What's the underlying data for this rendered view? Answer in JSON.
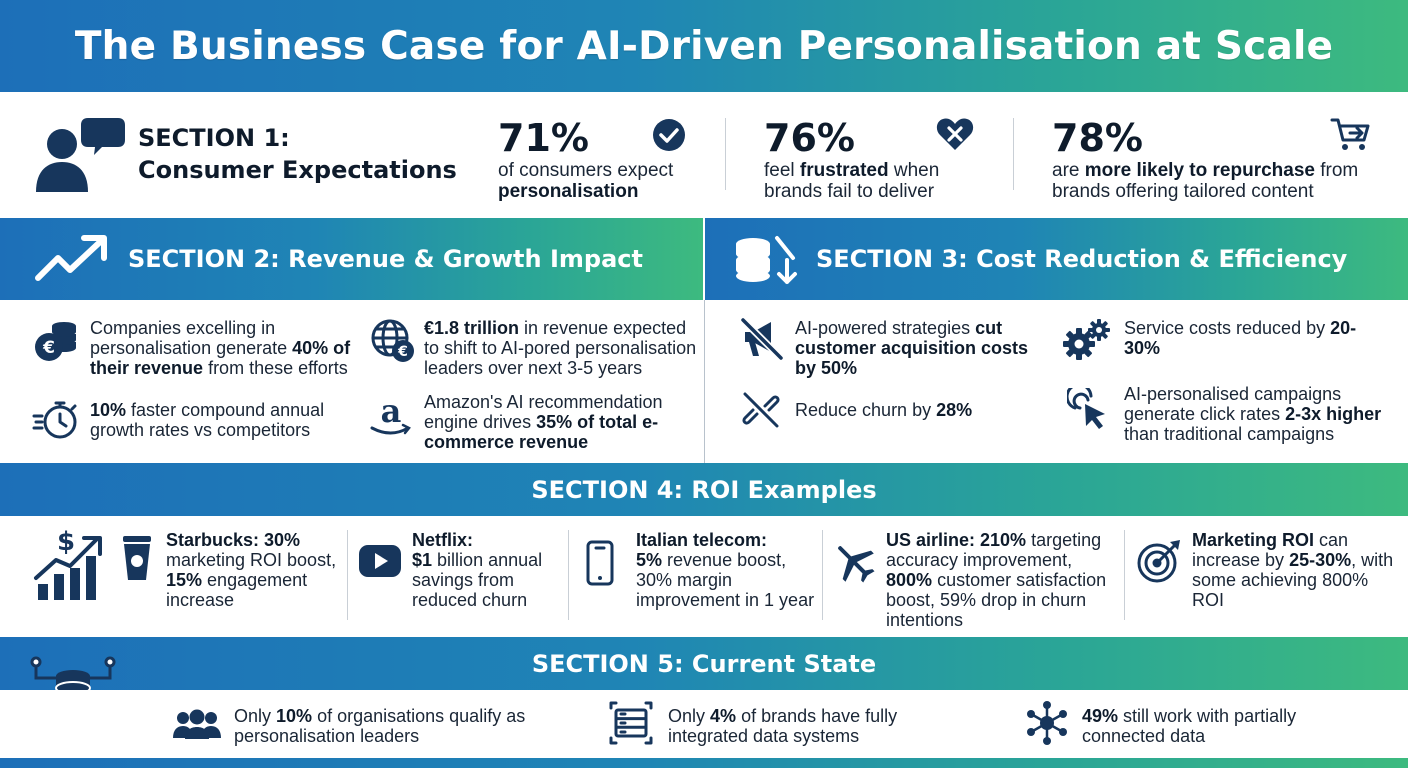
{
  "title": "The Business Case for AI-Driven Personalisation at Scale",
  "section1": {
    "title_line1": "SECTION 1:",
    "title_line2": "Consumer Expectations",
    "stats": [
      {
        "value": "71%",
        "pre": "of consumers expect",
        "bold": "personalisation",
        "post": ""
      },
      {
        "value": "76%",
        "pre": "feel",
        "bold": "frustrated",
        "post": "when brands fail to deliver"
      },
      {
        "value": "78%",
        "pre": "are",
        "bold": "more likely to repurchase",
        "post": "from brands offering tailored content"
      }
    ]
  },
  "section2": {
    "title": "SECTION 2: Revenue & Growth Impact",
    "items": [
      {
        "pre": "Companies excelling in personalisation generate",
        "bold": "40% of their revenue",
        "post": "from these efforts",
        "icon": "coins-euro-icon"
      },
      {
        "pre": "",
        "bold": "€1.8 trillion",
        "post": "in revenue expected to shift to AI-pored personalisation leaders over next 3-5 years",
        "icon": "globe-euro-icon"
      },
      {
        "pre": "",
        "bold": "10%",
        "post": "faster compound annual growth rates vs competitors",
        "icon": "stopwatch-icon"
      },
      {
        "pre": "Amazon's AI recommendation engine drives",
        "bold": "35% of total e-commerce revenue",
        "post": "",
        "icon": "amazon-logo-icon"
      }
    ]
  },
  "section3": {
    "title": "SECTION 3: Cost Reduction & Efficiency",
    "items": [
      {
        "pre": "AI-powered strategies",
        "bold": "cut customer acquisition costs by 50%",
        "post": "",
        "icon": "megaphone-off-icon"
      },
      {
        "pre": "Service costs reduced by",
        "bold": "20-30%",
        "post": "",
        "icon": "gears-icon"
      },
      {
        "pre": "Reduce churn by",
        "bold": "28%",
        "post": "",
        "icon": "broken-link-icon"
      },
      {
        "pre": "AI-personalised campaigns generate click rates",
        "bold": "2-3x higher",
        "post": "than traditional campaigns",
        "icon": "cursor-click-icon"
      }
    ]
  },
  "section4": {
    "title": "SECTION 4: ROI Examples",
    "items": [
      {
        "head": "Starbucks: 30%",
        "rest_pre": "marketing ROI boost,",
        "rest_bold": "15%",
        "rest_post": "engagement increase",
        "icon": "coffee-cup-icon"
      },
      {
        "head": "Netflix:",
        "rest_pre": "",
        "rest_bold": "$1",
        "rest_post": "billion annual savings from reduced churn",
        "icon": "play-button-icon"
      },
      {
        "head": "Italian telecom:",
        "rest_pre": "",
        "rest_bold": "5%",
        "rest_post": "revenue boost, 30% margin improvement in 1 year",
        "icon": "smartphone-icon"
      },
      {
        "head": "US airline: 210%",
        "rest_pre": "targeting accuracy improvement,",
        "rest_bold": "800%",
        "rest_post": "customer satisfaction boost, 59% drop in churn intentions",
        "icon": "airplane-icon"
      },
      {
        "head": "Marketing ROI",
        "rest_pre": "can increase by",
        "rest_bold": "25-30%",
        "rest_post": ", with some achieving 800% ROI",
        "icon": "target-icon"
      }
    ]
  },
  "section5": {
    "title": "SECTION 5: Current State",
    "items": [
      {
        "pre": "Only",
        "bold": "10%",
        "post": "of organisations qualify as personalisation leaders",
        "icon": "users-icon"
      },
      {
        "pre": "Only",
        "bold": "4%",
        "post": "of brands have fully integrated data systems",
        "icon": "server-network-icon"
      },
      {
        "pre": "",
        "bold": "49%",
        "post": "still work with partially connected data",
        "icon": "hub-network-icon"
      }
    ]
  },
  "colors": {
    "navy": "#17365c",
    "gradient_start": "#1d6fb8",
    "gradient_end": "#3dba7f"
  }
}
